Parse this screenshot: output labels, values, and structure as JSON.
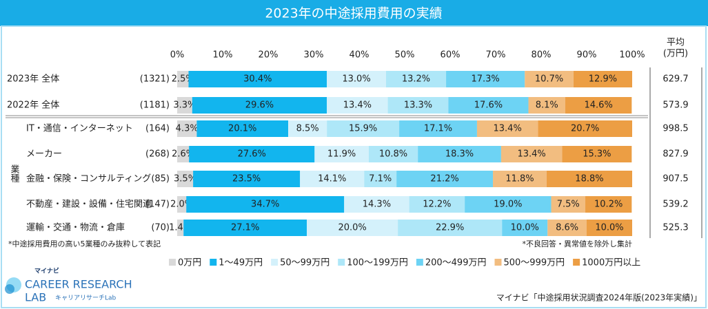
{
  "chart_data": {
    "type": "bar",
    "orientation": "horizontal",
    "stacked": true,
    "title": "2023年の中途採用費用の実績",
    "categories": [
      "2023年 全体",
      "2022年 全体",
      "IT・通信・インターネット",
      "メーカー",
      "金融・保険・コンサルティング",
      "不動産・建設・設備・住宅関連",
      "運輸・交通・物流・倉庫"
    ],
    "counts": [
      "(1321)",
      "(1181)",
      "(164)",
      "(268)",
      "(85)",
      "(147)",
      "(70)"
    ],
    "group_label": "業種",
    "average_header": [
      "平均",
      "(万円)"
    ],
    "averages": [
      629.7,
      573.9,
      998.5,
      827.9,
      907.5,
      539.2,
      525.3
    ],
    "xlim": [
      0,
      100
    ],
    "xticks": [
      {
        "value": 0,
        "label": "0%"
      },
      {
        "value": 10,
        "label": "10%"
      },
      {
        "value": 20,
        "label": "20%"
      },
      {
        "value": 30,
        "label": "30%"
      },
      {
        "value": 40,
        "label": "40%"
      },
      {
        "value": 50,
        "label": "50%"
      },
      {
        "value": 60,
        "label": "60%"
      },
      {
        "value": 70,
        "label": "70%"
      },
      {
        "value": 80,
        "label": "80%"
      },
      {
        "value": 90,
        "label": "90%"
      },
      {
        "value": 100,
        "label": "100%"
      }
    ],
    "legend": "bottom",
    "series": [
      {
        "name": "0万円",
        "color": "#d9d9d9",
        "values": [
          2.5,
          3.3,
          4.3,
          2.6,
          3.5,
          2.0,
          1.4
        ],
        "value_labels": [
          "2.5%",
          "3.3%",
          "4.3%",
          "2.6%",
          "3.5%",
          "2.0%",
          "1.4%"
        ]
      },
      {
        "name": "1～49万円",
        "color": "#12b5ee",
        "values": [
          30.4,
          29.6,
          20.1,
          27.6,
          23.5,
          34.7,
          27.1
        ],
        "value_labels": [
          "30.4%",
          "29.6%",
          "20.1%",
          "27.6%",
          "23.5%",
          "34.7%",
          "27.1%"
        ]
      },
      {
        "name": "50～99万円",
        "color": "#d4f1fb",
        "values": [
          13.0,
          13.4,
          8.5,
          11.9,
          14.1,
          14.3,
          20.0
        ],
        "value_labels": [
          "13.0%",
          "13.4%",
          "8.5%",
          "11.9%",
          "14.1%",
          "14.3%",
          "20.0%"
        ]
      },
      {
        "name": "100～199万円",
        "color": "#aee7f8",
        "values": [
          13.2,
          13.3,
          15.9,
          10.8,
          7.1,
          12.2,
          22.9
        ],
        "value_labels": [
          "13.2%",
          "13.3%",
          "15.9%",
          "10.8%",
          "7.1%",
          "12.2%",
          "22.9%"
        ]
      },
      {
        "name": "200～499万円",
        "color": "#6dd3f4",
        "values": [
          17.3,
          17.6,
          17.1,
          18.3,
          21.2,
          19.0,
          10.0
        ],
        "value_labels": [
          "17.3%",
          "17.6%",
          "17.1%",
          "18.3%",
          "21.2%",
          "19.0%",
          "10.0%"
        ]
      },
      {
        "name": "500～999万円",
        "color": "#f2bd80",
        "values": [
          10.7,
          8.1,
          13.4,
          13.4,
          11.8,
          7.5,
          8.6
        ],
        "value_labels": [
          "10.7%",
          "8.1%",
          "13.4%",
          "13.4%",
          "11.8%",
          "7.5%",
          "8.6%"
        ]
      },
      {
        "name": "1000万円以上",
        "color": "#ec9e44",
        "values": [
          12.9,
          14.6,
          20.7,
          15.3,
          18.8,
          10.2,
          10.0
        ],
        "value_labels": [
          "12.9%",
          "14.6%",
          "20.7%",
          "15.3%",
          "18.8%",
          "10.2%",
          "10.0%"
        ]
      }
    ],
    "notes": [
      "*中途採用費用の高い5業種のみ抜粋して表記",
      "*不良回答・異常値を除外し集計"
    ],
    "source": "マイナビ「中途採用状況調査2024年版(2023年実績)」",
    "logo": {
      "brand": "マイナビ",
      "line1": "CAREER RESEARCH",
      "line2": "LAB",
      "sub": "キャリアリサーチLab"
    }
  }
}
